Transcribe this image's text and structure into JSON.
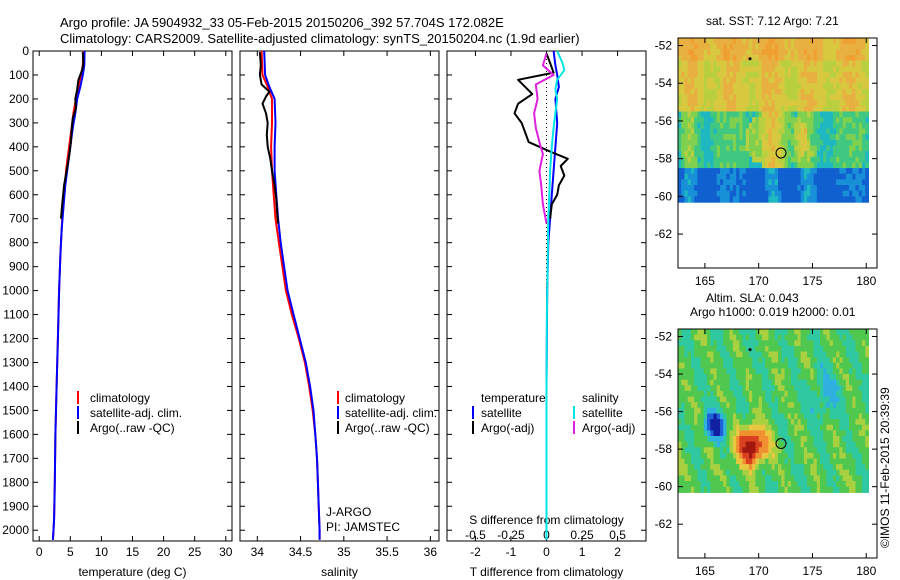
{
  "title": {
    "line1": "Argo profile: JA 5904932_33 05-Feb-2015 20150206_392 57.704S 172.082E",
    "line2": "Climatology: CARS2009. Satellite-adjusted climatology: synTS_20150204.nc (1.9d earlier)"
  },
  "watermark": "©IMOS 11-Feb-2015 20:39:39",
  "colors": {
    "climatology": "#ff0000",
    "satellite": "#0000ff",
    "argo": "#000000",
    "satellite_salinity": "#00e5e5",
    "argo_salinity": "#e020e0"
  },
  "depth_ticks": [
    "0",
    "100",
    "200",
    "300",
    "400",
    "500",
    "600",
    "700",
    "800",
    "900",
    "1000",
    "1100",
    "1200",
    "1300",
    "1400",
    "1500",
    "1600",
    "1700",
    "1800",
    "1900",
    "2000"
  ],
  "panels": [
    {
      "id": "temperature",
      "xlabel": "temperature (deg C)",
      "xlim": [
        -1,
        31
      ],
      "xticks": [
        {
          "v": 0,
          "label": "0"
        },
        {
          "v": 5,
          "label": "5"
        },
        {
          "v": 10,
          "label": "10"
        },
        {
          "v": 15,
          "label": "15"
        },
        {
          "v": 20,
          "label": "20"
        },
        {
          "v": 25,
          "label": "25"
        },
        {
          "v": 30,
          "label": "30"
        }
      ],
      "legend": [
        "climatology",
        "satellite-adj. clim.",
        "Argo(..raw -QC)"
      ],
      "series": [
        {
          "name": "climatology",
          "color": "#ff0000",
          "points": [
            [
              7.1,
              0
            ],
            [
              7.0,
              60
            ],
            [
              6.7,
              100
            ],
            [
              6.3,
              150
            ],
            [
              5.9,
              200
            ],
            [
              5.5,
              260
            ],
            [
              5.2,
              320
            ],
            [
              4.8,
              400
            ],
            [
              4.4,
              480
            ],
            [
              4.1,
              560
            ],
            [
              3.8,
              650
            ],
            [
              3.6,
              750
            ],
            [
              3.4,
              850
            ],
            [
              3.2,
              1000
            ],
            [
              3.0,
              1200
            ],
            [
              2.8,
              1400
            ],
            [
              2.6,
              1600
            ],
            [
              2.5,
              1800
            ],
            [
              2.4,
              1950
            ],
            [
              2.3,
              2000
            ],
            [
              2.2,
              2040
            ]
          ]
        },
        {
          "name": "satellite-adj. clim.",
          "color": "#0000ff",
          "points": [
            [
              7.3,
              0
            ],
            [
              7.25,
              60
            ],
            [
              7.0,
              100
            ],
            [
              6.6,
              150
            ],
            [
              6.1,
              200
            ],
            [
              5.8,
              260
            ],
            [
              5.4,
              320
            ],
            [
              5.0,
              400
            ],
            [
              4.6,
              480
            ],
            [
              4.2,
              560
            ],
            [
              3.9,
              650
            ],
            [
              3.6,
              750
            ],
            [
              3.4,
              850
            ],
            [
              3.2,
              1000
            ],
            [
              3.0,
              1200
            ],
            [
              2.8,
              1400
            ],
            [
              2.6,
              1600
            ],
            [
              2.5,
              1800
            ],
            [
              2.4,
              1950
            ],
            [
              2.3,
              2000
            ],
            [
              2.2,
              2040
            ]
          ]
        },
        {
          "name": "Argo(..raw -QC)",
          "color": "#000000",
          "points": [
            [
              7.0,
              5
            ],
            [
              7.1,
              50
            ],
            [
              6.9,
              80
            ],
            [
              6.3,
              120
            ],
            [
              6.1,
              160
            ],
            [
              5.8,
              200
            ],
            [
              5.9,
              240
            ],
            [
              5.4,
              280
            ],
            [
              5.2,
              330
            ],
            [
              5.1,
              380
            ],
            [
              4.8,
              440
            ],
            [
              4.4,
              500
            ],
            [
              4.0,
              560
            ],
            [
              3.7,
              640
            ],
            [
              3.5,
              700
            ]
          ]
        }
      ]
    },
    {
      "id": "salinity",
      "xlabel": "salinity",
      "xlim": [
        33.8,
        36.1
      ],
      "xticks": [
        {
          "v": 34,
          "label": "34"
        },
        {
          "v": 34.5,
          "label": "34.5"
        },
        {
          "v": 35,
          "label": "35"
        },
        {
          "v": 35.5,
          "label": "35.5"
        },
        {
          "v": 36,
          "label": "36"
        }
      ],
      "legend": [
        "climatology",
        "satellite-adj. clim.",
        "Argo(..raw -QC)"
      ],
      "annotation": [
        "J-ARGO",
        "PI: JAMSTEC"
      ],
      "series": [
        {
          "name": "climatology",
          "color": "#ff0000",
          "points": [
            [
              34.05,
              0
            ],
            [
              34.06,
              100
            ],
            [
              34.12,
              150
            ],
            [
              34.17,
              200
            ],
            [
              34.17,
              300
            ],
            [
              34.16,
              400
            ],
            [
              34.17,
              500
            ],
            [
              34.19,
              600
            ],
            [
              34.21,
              700
            ],
            [
              34.25,
              800
            ],
            [
              34.29,
              900
            ],
            [
              34.33,
              1000
            ],
            [
              34.4,
              1100
            ],
            [
              34.48,
              1200
            ],
            [
              34.55,
              1300
            ],
            [
              34.6,
              1400
            ],
            [
              34.64,
              1500
            ],
            [
              34.67,
              1600
            ],
            [
              34.69,
              1700
            ],
            [
              34.7,
              1800
            ],
            [
              34.71,
              1900
            ],
            [
              34.72,
              2000
            ],
            [
              34.72,
              2040
            ]
          ]
        },
        {
          "name": "satellite-adj. clim.",
          "color": "#0000ff",
          "points": [
            [
              34.08,
              0
            ],
            [
              34.09,
              100
            ],
            [
              34.14,
              150
            ],
            [
              34.2,
              200
            ],
            [
              34.21,
              300
            ],
            [
              34.2,
              400
            ],
            [
              34.2,
              500
            ],
            [
              34.22,
              600
            ],
            [
              34.24,
              700
            ],
            [
              34.27,
              800
            ],
            [
              34.31,
              900
            ],
            [
              34.35,
              1000
            ],
            [
              34.42,
              1100
            ],
            [
              34.49,
              1200
            ],
            [
              34.56,
              1300
            ],
            [
              34.61,
              1400
            ],
            [
              34.65,
              1500
            ],
            [
              34.67,
              1600
            ],
            [
              34.69,
              1700
            ],
            [
              34.7,
              1800
            ],
            [
              34.71,
              1900
            ],
            [
              34.72,
              2000
            ],
            [
              34.72,
              2040
            ]
          ]
        },
        {
          "name": "Argo(..raw -QC)",
          "color": "#000000",
          "points": [
            [
              34.03,
              5
            ],
            [
              34.04,
              60
            ],
            [
              34.03,
              100
            ],
            [
              34.05,
              140
            ],
            [
              34.14,
              170
            ],
            [
              34.1,
              190
            ],
            [
              34.06,
              220
            ],
            [
              34.1,
              260
            ],
            [
              34.12,
              300
            ],
            [
              34.11,
              350
            ],
            [
              34.12,
              400
            ],
            [
              34.15,
              450
            ],
            [
              34.17,
              500
            ],
            [
              34.2,
              560
            ],
            [
              34.22,
              620
            ],
            [
              34.23,
              680
            ],
            [
              34.24,
              720
            ]
          ]
        }
      ]
    },
    {
      "id": "difference",
      "xlabel": "T difference from climatology",
      "xlabel_top": "S difference from climatology",
      "xlim": [
        -2.8,
        2.8
      ],
      "xticks": [
        {
          "v": -2,
          "label": "-2"
        },
        {
          "v": -1,
          "label": "-1"
        },
        {
          "v": 0,
          "label": "0"
        },
        {
          "v": 1,
          "label": "1"
        },
        {
          "v": 2,
          "label": "2"
        }
      ],
      "xticks_top": [
        {
          "v": -2,
          "label": "-0.5"
        },
        {
          "v": -1,
          "label": "-0.25"
        },
        {
          "v": 0,
          "label": "0"
        },
        {
          "v": 1,
          "label": "0.25"
        },
        {
          "v": 2,
          "label": "0.5"
        }
      ],
      "legend_temperature": [
        "temperature",
        "satellite",
        "Argo(-adj)"
      ],
      "legend_salinity": [
        "salinity",
        "satellite",
        "Argo(-adj)"
      ],
      "series": [
        {
          "name": "temperature satellite",
          "color": "#0000ff",
          "points": [
            [
              0.2,
              0
            ],
            [
              0.25,
              60
            ],
            [
              0.3,
              100
            ],
            [
              0.35,
              150
            ],
            [
              0.25,
              200
            ],
            [
              0.3,
              300
            ],
            [
              0.25,
              400
            ],
            [
              0.2,
              500
            ],
            [
              0.15,
              600
            ],
            [
              0.1,
              700
            ],
            [
              0.05,
              800
            ],
            [
              0.02,
              1000
            ],
            [
              0.0,
              1400
            ],
            [
              0.0,
              2040
            ]
          ]
        },
        {
          "name": "temperature Argo(-adj)",
          "color": "#000000",
          "points": [
            [
              0.0,
              10
            ],
            [
              0.1,
              50
            ],
            [
              0.2,
              90
            ],
            [
              -0.8,
              120
            ],
            [
              -0.6,
              150
            ],
            [
              -0.4,
              180
            ],
            [
              -0.8,
              220
            ],
            [
              -0.9,
              260
            ],
            [
              -0.7,
              300
            ],
            [
              -0.6,
              340
            ],
            [
              -0.5,
              380
            ],
            [
              0.1,
              420
            ],
            [
              0.6,
              450
            ],
            [
              0.4,
              480
            ],
            [
              0.5,
              520
            ],
            [
              0.35,
              560
            ],
            [
              0.3,
              600
            ],
            [
              0.15,
              640
            ],
            [
              0.1,
              700
            ]
          ]
        },
        {
          "name": "salinity satellite",
          "color": "#00e5e5",
          "points": [
            [
              0.3,
              0
            ],
            [
              0.45,
              50
            ],
            [
              0.5,
              80
            ],
            [
              0.3,
              120
            ],
            [
              0.25,
              160
            ],
            [
              0.3,
              200
            ],
            [
              0.25,
              260
            ],
            [
              0.2,
              320
            ],
            [
              0.15,
              400
            ],
            [
              0.1,
              500
            ],
            [
              0.08,
              600
            ],
            [
              0.05,
              700
            ],
            [
              0.03,
              900
            ],
            [
              0.01,
              1100
            ],
            [
              0.0,
              1400
            ],
            [
              0.0,
              2040
            ]
          ]
        },
        {
          "name": "salinity Argo(-adj)",
          "color": "#e020e0",
          "points": [
            [
              0.0,
              10
            ],
            [
              -0.1,
              60
            ],
            [
              0.2,
              100
            ],
            [
              -0.3,
              140
            ],
            [
              -0.25,
              200
            ],
            [
              -0.35,
              260
            ],
            [
              -0.3,
              320
            ],
            [
              -0.2,
              380
            ],
            [
              -0.1,
              430
            ],
            [
              -0.2,
              500
            ],
            [
              -0.15,
              560
            ],
            [
              -0.1,
              640
            ],
            [
              0.0,
              720
            ]
          ]
        }
      ]
    }
  ],
  "maps": [
    {
      "id": "sst-map",
      "title": [
        "sat. SST: 7.12  Argo: 7.21"
      ],
      "yticks": [
        "-52",
        "-54",
        "-56",
        "-58",
        "-60",
        "-62"
      ],
      "xticks": [
        "165",
        "170",
        "175",
        "180"
      ],
      "lon_range": [
        162.5,
        181
      ],
      "lat_range": [
        -63.8,
        -51.6
      ],
      "data_lat_range": [
        -60,
        -51.6
      ],
      "argo_position": [
        172.08,
        -57.7
      ],
      "marker_position": [
        169.2,
        -52.7
      ]
    },
    {
      "id": "sla-map",
      "title": [
        "Altim. SLA: 0.043",
        "Argo h1000: 0.019 h2000: 0.01"
      ],
      "yticks": [
        "-52",
        "-54",
        "-56",
        "-58",
        "-60",
        "-62"
      ],
      "xticks": [
        "165",
        "170",
        "175",
        "180"
      ],
      "lon_range": [
        162.5,
        181
      ],
      "lat_range": [
        -63.8,
        -51.6
      ],
      "data_lat_range": [
        -60,
        -51.6
      ],
      "argo_position": [
        172.08,
        -57.7
      ],
      "marker_position": [
        169.2,
        -52.7
      ]
    }
  ]
}
